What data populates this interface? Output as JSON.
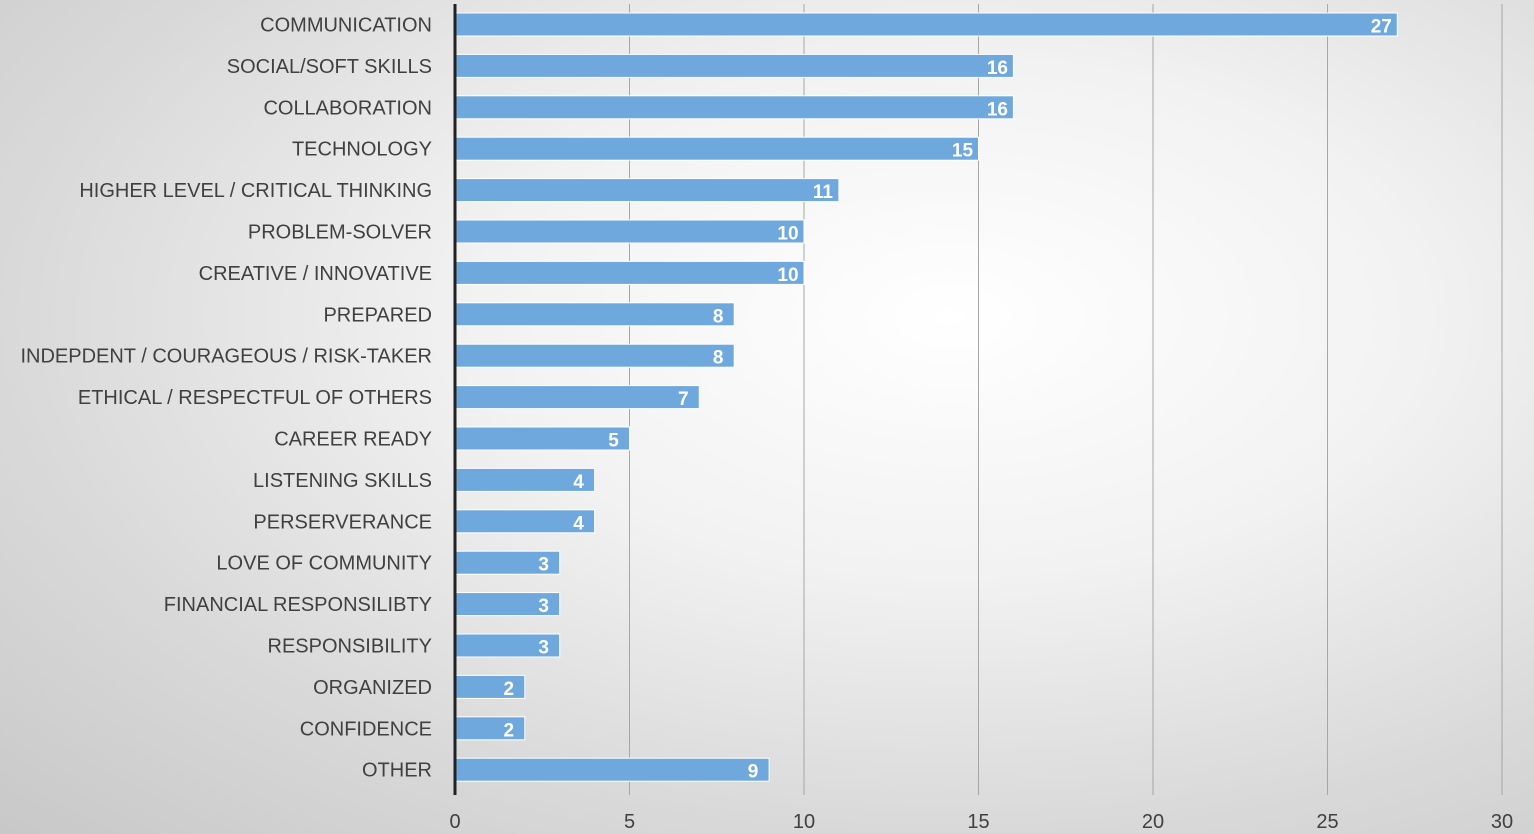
{
  "chart_data": {
    "type": "bar",
    "orientation": "horizontal",
    "title": "",
    "xlabel": "",
    "ylabel": "",
    "categories": [
      "COMMUNICATION",
      "SOCIAL/SOFT SKILLS",
      "COLLABORATION",
      "TECHNOLOGY",
      "HIGHER LEVEL / CRITICAL THINKING",
      "PROBLEM-SOLVER",
      "CREATIVE / INNOVATIVE",
      "PREPARED",
      "INDEPDENT / COURAGEOUS / RISK-TAKER",
      "ETHICAL / RESPECTFUL OF OTHERS",
      "CAREER READY",
      "LISTENING SKILLS",
      "PERSERVERANCE",
      "LOVE OF COMMUNITY",
      "FINANCIAL RESPONSILIBTY",
      "RESPONSIBILITY",
      "ORGANIZED",
      "CONFIDENCE",
      "OTHER"
    ],
    "values": [
      27,
      16,
      16,
      15,
      11,
      10,
      10,
      8,
      8,
      7,
      5,
      4,
      4,
      3,
      3,
      3,
      2,
      2,
      9
    ],
    "xlim": [
      0,
      30
    ],
    "xticks": [
      0,
      5,
      10,
      15,
      20,
      25,
      30
    ],
    "grid": true,
    "data_labels": true,
    "bar_color": "#6fa8dc",
    "axis_color": "#222222",
    "grid_color": "#a6a6a6"
  }
}
